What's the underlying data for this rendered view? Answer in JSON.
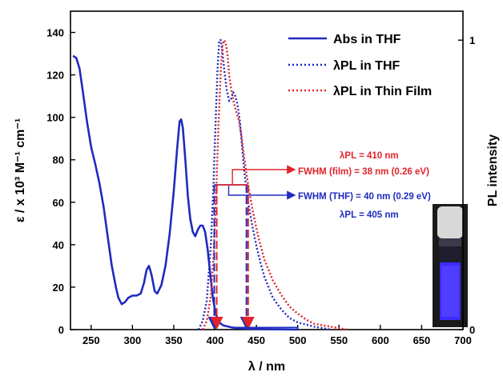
{
  "chart_data": {
    "type": "line",
    "xlabel": "λ / nm",
    "ylabel": "ε / x 10³ M⁻¹ cm⁻¹",
    "y2label": "PL intensity",
    "xlim": [
      225,
      700
    ],
    "ylim": [
      0,
      150
    ],
    "y2lim": [
      0,
      1.1
    ],
    "x_ticks": [
      250,
      300,
      350,
      400,
      450,
      500,
      550,
      600,
      650,
      700
    ],
    "y_ticks": [
      0,
      20,
      40,
      60,
      80,
      100,
      120,
      140
    ],
    "y2_ticks": [
      0,
      1
    ],
    "legend_position": "top-right",
    "colors": {
      "abs": "#1f2bbf",
      "pl_thf": "#1f2bbf",
      "pl_film": "#e0242a"
    },
    "series": [
      {
        "name": "Abs in THF",
        "axis": "left",
        "style": "solid",
        "color": "#1f2bbf",
        "points": [
          [
            228,
            129
          ],
          [
            232,
            128
          ],
          [
            236,
            123
          ],
          [
            240,
            112
          ],
          [
            245,
            98
          ],
          [
            250,
            86
          ],
          [
            255,
            78
          ],
          [
            260,
            69
          ],
          [
            265,
            58
          ],
          [
            270,
            44
          ],
          [
            275,
            30
          ],
          [
            280,
            20
          ],
          [
            283,
            15
          ],
          [
            287,
            12
          ],
          [
            291,
            13
          ],
          [
            295,
            15
          ],
          [
            300,
            16
          ],
          [
            305,
            16
          ],
          [
            310,
            17
          ],
          [
            314,
            22
          ],
          [
            317,
            28
          ],
          [
            320,
            30
          ],
          [
            323,
            26
          ],
          [
            327,
            18
          ],
          [
            330,
            17
          ],
          [
            335,
            21
          ],
          [
            340,
            30
          ],
          [
            345,
            45
          ],
          [
            350,
            65
          ],
          [
            354,
            85
          ],
          [
            357,
            98
          ],
          [
            359,
            99
          ],
          [
            361,
            95
          ],
          [
            364,
            80
          ],
          [
            367,
            63
          ],
          [
            370,
            52
          ],
          [
            373,
            46
          ],
          [
            376,
            44
          ],
          [
            379,
            47
          ],
          [
            382,
            49
          ],
          [
            385,
            49
          ],
          [
            388,
            46
          ],
          [
            391,
            38
          ],
          [
            394,
            27
          ],
          [
            397,
            16
          ],
          [
            400,
            9
          ],
          [
            403,
            5
          ],
          [
            406,
            3
          ],
          [
            410,
            2
          ],
          [
            415,
            1.5
          ],
          [
            420,
            1
          ],
          [
            430,
            0.6
          ],
          [
            450,
            0.3
          ],
          [
            500,
            0
          ]
        ]
      },
      {
        "name": "λPL in THF",
        "axis": "right",
        "style": "dotted",
        "color": "#1f2bbf",
        "points": [
          [
            380,
            0
          ],
          [
            385,
            0.03
          ],
          [
            390,
            0.1
          ],
          [
            395,
            0.3
          ],
          [
            398,
            0.5
          ],
          [
            401,
            0.75
          ],
          [
            403,
            0.9
          ],
          [
            405,
            1.0
          ],
          [
            407,
            1.0
          ],
          [
            409,
            0.96
          ],
          [
            411,
            0.9
          ],
          [
            414,
            0.83
          ],
          [
            417,
            0.79
          ],
          [
            420,
            0.8
          ],
          [
            422,
            0.82
          ],
          [
            424,
            0.81
          ],
          [
            427,
            0.78
          ],
          [
            430,
            0.72
          ],
          [
            433,
            0.62
          ],
          [
            436,
            0.53
          ],
          [
            440,
            0.44
          ],
          [
            445,
            0.36
          ],
          [
            450,
            0.29
          ],
          [
            455,
            0.23
          ],
          [
            460,
            0.18
          ],
          [
            470,
            0.11
          ],
          [
            480,
            0.07
          ],
          [
            490,
            0.04
          ],
          [
            500,
            0.025
          ],
          [
            520,
            0.01
          ],
          [
            540,
            0
          ]
        ]
      },
      {
        "name": "λPL in Thin Film",
        "axis": "right",
        "style": "dotted",
        "color": "#e0242a",
        "points": [
          [
            385,
            0
          ],
          [
            390,
            0.03
          ],
          [
            395,
            0.12
          ],
          [
            398,
            0.25
          ],
          [
            401,
            0.45
          ],
          [
            404,
            0.7
          ],
          [
            407,
            0.9
          ],
          [
            409,
            0.98
          ],
          [
            411,
            1.0
          ],
          [
            413,
            0.99
          ],
          [
            415,
            0.95
          ],
          [
            417,
            0.88
          ],
          [
            420,
            0.82
          ],
          [
            423,
            0.78
          ],
          [
            426,
            0.75
          ],
          [
            429,
            0.72
          ],
          [
            432,
            0.67
          ],
          [
            435,
            0.6
          ],
          [
            440,
            0.5
          ],
          [
            445,
            0.42
          ],
          [
            450,
            0.35
          ],
          [
            455,
            0.29
          ],
          [
            460,
            0.24
          ],
          [
            470,
            0.17
          ],
          [
            480,
            0.12
          ],
          [
            490,
            0.08
          ],
          [
            500,
            0.055
          ],
          [
            510,
            0.035
          ],
          [
            520,
            0.02
          ],
          [
            540,
            0.01
          ],
          [
            560,
            0
          ]
        ]
      }
    ],
    "annotations": {
      "film_pl": "λPL = 410 nm",
      "film_fwhm": "FWHM (film) = 38 nm (0.26 eV)",
      "thf_fwhm": "FWHM (THF) = 40 nm (0.29 eV)",
      "thf_pl": "λPL = 405 nm"
    },
    "fwhm_markers": {
      "thf": {
        "x1": 399,
        "x2": 438,
        "y": 0.5,
        "color": "#1f2bbf"
      },
      "film": {
        "x1": 402,
        "x2": 440,
        "y": 0.5,
        "color": "#e0242a"
      }
    }
  }
}
